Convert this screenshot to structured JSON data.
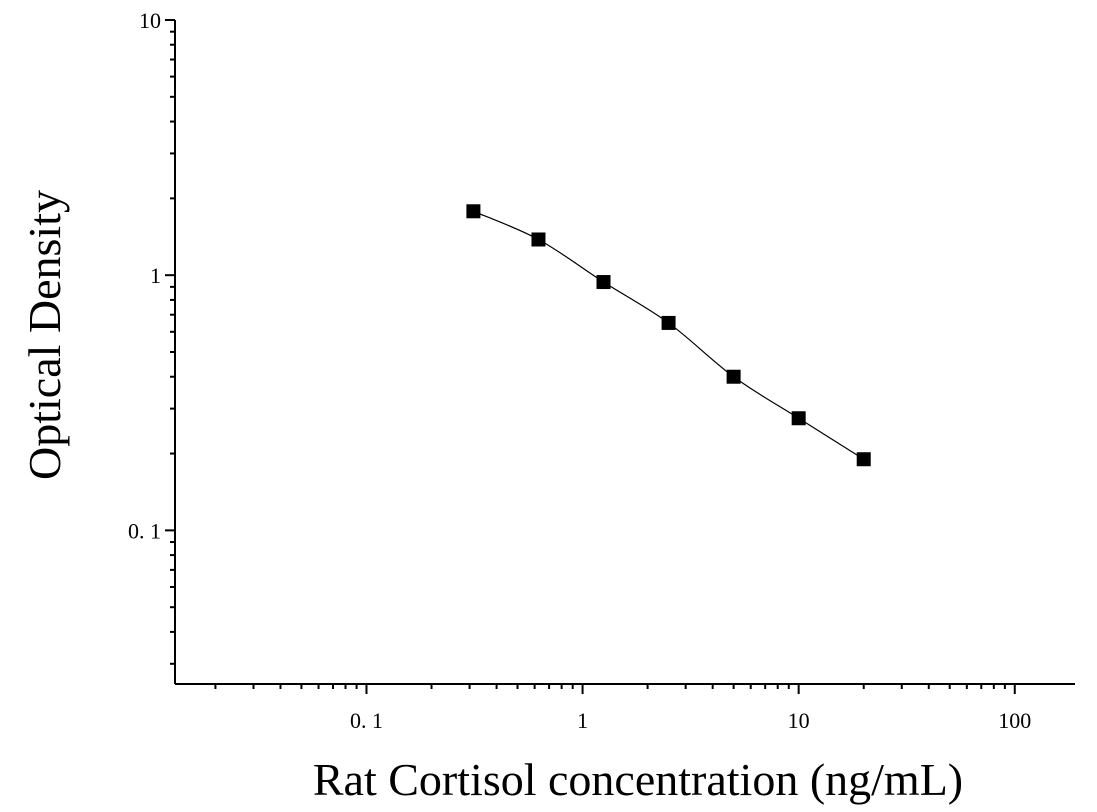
{
  "chart_data": {
    "type": "scatter",
    "xlabel": "Rat Cortisol concentration (ng/mL)",
    "ylabel": "Optical Density",
    "x_scale": "log",
    "y_scale": "log",
    "xlim": [
      0.013,
      190
    ],
    "ylim": [
      0.025,
      10
    ],
    "x_ticks": [
      {
        "value": 0.1,
        "label": "0. 1"
      },
      {
        "value": 1,
        "label": "1"
      },
      {
        "value": 10,
        "label": "10"
      },
      {
        "value": 100,
        "label": "100"
      }
    ],
    "y_ticks": [
      {
        "value": 0.1,
        "label": "0. 1"
      },
      {
        "value": 1,
        "label": "1"
      },
      {
        "value": 10,
        "label": "10"
      }
    ],
    "grid": false,
    "series": [
      {
        "marker": "square",
        "fit_line": true,
        "color": "#000000",
        "x": [
          0.3125,
          0.625,
          1.25,
          2.5,
          5,
          10,
          20
        ],
        "y": [
          1.78,
          1.38,
          0.94,
          0.65,
          0.4,
          0.275,
          0.19
        ]
      }
    ]
  }
}
